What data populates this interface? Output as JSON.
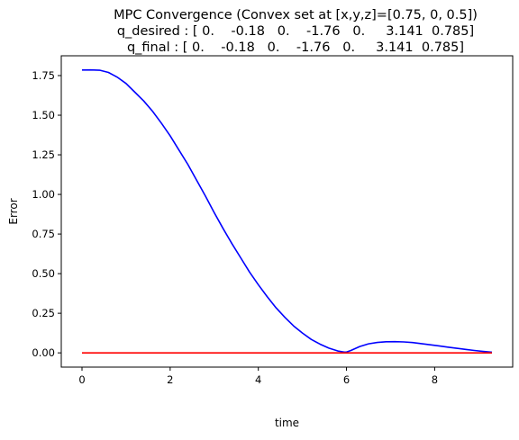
{
  "chart_data": {
    "type": "line",
    "title_lines": [
      "MPC Convergence (Convex set at [x,y,z]=[0.75, 0, 0.5])",
      "q_desired : [ 0.    -0.18   0.    -1.76   0.     3.141  0.785]",
      "q_final : [ 0.    -0.18   0.    -1.76   0.     3.141  0.785]"
    ],
    "xlabel": "time",
    "ylabel": "Error",
    "xlim": [
      -0.47,
      9.77
    ],
    "ylim": [
      -0.09,
      1.875
    ],
    "x_ticks": [
      0,
      2,
      4,
      6,
      8
    ],
    "y_ticks": [
      0.0,
      0.25,
      0.5,
      0.75,
      1.0,
      1.25,
      1.5,
      1.75
    ],
    "x_tick_labels": [
      "0",
      "2",
      "4",
      "6",
      "8"
    ],
    "y_tick_labels": [
      "0.00",
      "0.25",
      "0.50",
      "0.75",
      "1.00",
      "1.25",
      "1.50",
      "1.75"
    ],
    "grid": false,
    "series": [
      {
        "color": "#0000ff",
        "x": [
          0,
          0.2,
          0.4,
          0.6,
          0.8,
          1.0,
          1.2,
          1.4,
          1.6,
          1.8,
          2.0,
          2.2,
          2.4,
          2.6,
          2.8,
          3.0,
          3.2,
          3.4,
          3.6,
          3.8,
          4.0,
          4.2,
          4.4,
          4.6,
          4.8,
          5.0,
          5.2,
          5.4,
          5.6,
          5.8,
          5.95,
          6.0,
          6.1,
          6.3,
          6.5,
          6.7,
          6.9,
          7.1,
          7.3,
          7.5,
          7.7,
          7.9,
          8.1,
          8.3,
          8.5,
          8.7,
          8.9,
          9.1,
          9.3
        ],
        "y": [
          1.785,
          1.786,
          1.784,
          1.77,
          1.74,
          1.7,
          1.645,
          1.59,
          1.525,
          1.45,
          1.37,
          1.28,
          1.19,
          1.09,
          0.99,
          0.885,
          0.785,
          0.69,
          0.6,
          0.51,
          0.43,
          0.355,
          0.285,
          0.225,
          0.17,
          0.125,
          0.085,
          0.055,
          0.03,
          0.012,
          0.005,
          0.005,
          0.015,
          0.04,
          0.057,
          0.066,
          0.07,
          0.071,
          0.069,
          0.065,
          0.058,
          0.051,
          0.044,
          0.036,
          0.029,
          0.022,
          0.015,
          0.009,
          0.004
        ]
      },
      {
        "color": "#ff0000",
        "x": [
          0,
          9.3
        ],
        "y": [
          0.0,
          0.0
        ]
      }
    ]
  }
}
